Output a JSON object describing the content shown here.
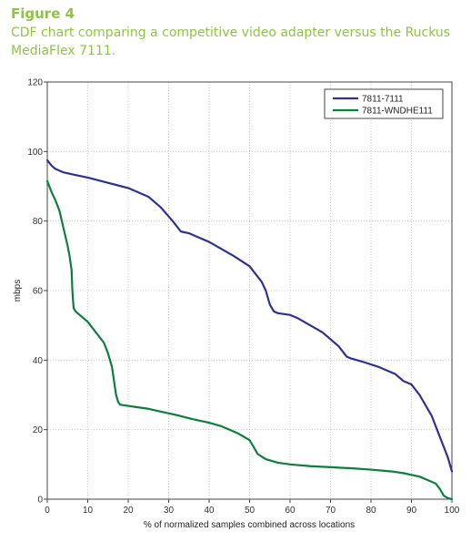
{
  "figure": {
    "label": "Figure 4",
    "caption": "CDF chart comparing a competitive video adapter versus the Ruckus MediaFlex 7111."
  },
  "colors": {
    "heading": "#8cc63f",
    "series_7111": "#2e3192",
    "series_wndhe111": "#0b7f3c"
  },
  "chart_data": {
    "type": "line",
    "title": "",
    "xlabel": "% of normalized samples combined across locations",
    "ylabel": "mbps",
    "xlim": [
      0,
      100
    ],
    "ylim": [
      0,
      120
    ],
    "xticks": [
      0,
      10,
      20,
      30,
      40,
      50,
      60,
      70,
      80,
      90,
      100
    ],
    "yticks": [
      0,
      20,
      40,
      60,
      80,
      100,
      120
    ],
    "grid": true,
    "legend_position": "top-right",
    "series": [
      {
        "name": "7811-7111",
        "color": "#2e3192",
        "x": [
          0,
          1,
          2,
          4,
          6,
          10,
          15,
          20,
          25,
          28,
          31,
          33,
          35,
          37,
          40,
          43,
          46,
          50,
          53,
          54,
          55,
          56,
          57,
          60,
          62,
          65,
          68,
          72,
          74,
          75,
          78,
          82,
          86,
          88,
          90,
          92,
          93,
          94,
          95,
          96,
          97,
          98,
          99,
          100
        ],
        "y": [
          97.5,
          96,
          95,
          94,
          93.5,
          92.5,
          91,
          89.5,
          87,
          84,
          80,
          77,
          76.5,
          75.5,
          74,
          72,
          70,
          67,
          62.5,
          60,
          56,
          54,
          53.5,
          53,
          52,
          50,
          48,
          44,
          41,
          40.5,
          39.5,
          38,
          36,
          34,
          33,
          30,
          28,
          26,
          24,
          21,
          18,
          15,
          12,
          8
        ]
      },
      {
        "name": "7811-WNDHE111",
        "color": "#0b7f3c",
        "x": [
          0,
          0.5,
          1,
          2,
          3,
          4,
          5,
          5.5,
          6,
          6.2,
          6.5,
          7,
          8,
          10,
          12,
          14,
          15,
          16,
          16.5,
          17,
          17.5,
          18,
          19,
          22,
          25,
          28,
          32,
          36,
          40,
          43,
          47,
          50,
          51,
          52,
          54,
          57,
          60,
          65,
          70,
          75,
          80,
          85,
          88,
          90,
          92,
          94,
          95,
          96,
          97,
          98,
          99,
          100
        ],
        "y": [
          91.5,
          90,
          88.5,
          86,
          83,
          78,
          73,
          70,
          66,
          60,
          55,
          54,
          53,
          51,
          48,
          45,
          42,
          38,
          34,
          30,
          28,
          27.2,
          27,
          26.5,
          26,
          25.2,
          24.2,
          23,
          22,
          21,
          19,
          17,
          15,
          13,
          11.5,
          10.5,
          10,
          9.5,
          9.2,
          8.9,
          8.5,
          8,
          7.5,
          7,
          6.5,
          5.5,
          5,
          4.5,
          3,
          1,
          0.3,
          0
        ]
      }
    ]
  }
}
